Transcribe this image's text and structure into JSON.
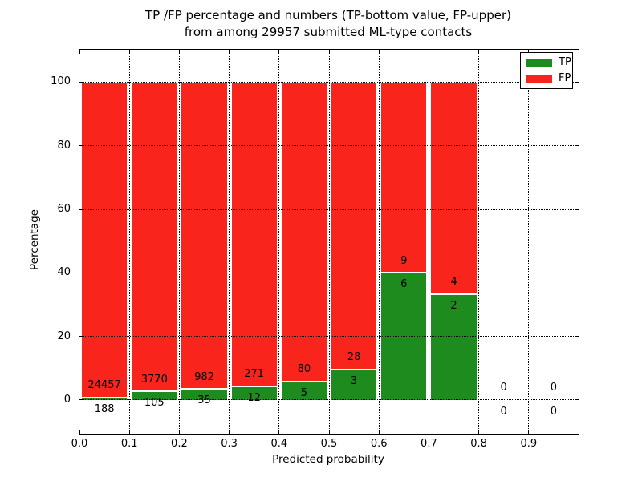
{
  "figure": {
    "title_line1": "TP /FP percentage and numbers (TP-bottom value, FP-upper)",
    "title_line2": "from among 29957 submitted ML-type contacts",
    "xlabel": "Predicted probability",
    "ylabel": "Percentage",
    "total_contacts": "29957"
  },
  "legend": {
    "items": [
      {
        "label": "TP",
        "color": "#1e8b1e"
      },
      {
        "label": "FP",
        "color": "#f9241c"
      }
    ]
  },
  "chart_data": {
    "type": "bar",
    "stacked": true,
    "normalized_to_percent": true,
    "title": "TP /FP percentage and numbers (TP-bottom value, FP-upper) from among 29957 submitted ML-type contacts",
    "xlabel": "Predicted probability",
    "ylabel": "Percentage",
    "grid": "dotted",
    "legend_position": "upper right",
    "xlim": [
      0.0,
      1.0
    ],
    "ylim": [
      -10.6,
      110.2
    ],
    "bin_width": 0.1,
    "x_tick_values": [
      0.0,
      0.1,
      0.2,
      0.3,
      0.4,
      0.5,
      0.6,
      0.7,
      0.8,
      0.9
    ],
    "x_tick_labels": [
      "0.0",
      "0.1",
      "0.2",
      "0.3",
      "0.4",
      "0.5",
      "0.6",
      "0.7",
      "0.8",
      "0.9"
    ],
    "y_ticks": [
      0,
      20,
      40,
      60,
      80,
      100
    ],
    "series": [
      {
        "name": "TP",
        "color": "#1e8b1e",
        "values": [
          188,
          105,
          35,
          12,
          5,
          3,
          6,
          2,
          0,
          0
        ]
      },
      {
        "name": "FP",
        "color": "#f9241c",
        "values": [
          24457,
          3770,
          982,
          271,
          80,
          28,
          9,
          4,
          0,
          0
        ]
      }
    ],
    "bins": [
      {
        "bin_start": 0.0,
        "tp": 188,
        "fp": 24457,
        "tp_percent": 0.76,
        "fp_percent": 99.24
      },
      {
        "bin_start": 0.1,
        "tp": 105,
        "fp": 3770,
        "tp_percent": 2.71,
        "fp_percent": 97.29
      },
      {
        "bin_start": 0.2,
        "tp": 35,
        "fp": 982,
        "tp_percent": 3.44,
        "fp_percent": 96.56
      },
      {
        "bin_start": 0.3,
        "tp": 12,
        "fp": 271,
        "tp_percent": 4.24,
        "fp_percent": 95.76
      },
      {
        "bin_start": 0.4,
        "tp": 5,
        "fp": 80,
        "tp_percent": 5.88,
        "fp_percent": 94.12
      },
      {
        "bin_start": 0.5,
        "tp": 3,
        "fp": 28,
        "tp_percent": 9.68,
        "fp_percent": 90.32
      },
      {
        "bin_start": 0.6,
        "tp": 6,
        "fp": 9,
        "tp_percent": 40.0,
        "fp_percent": 60.0
      },
      {
        "bin_start": 0.7,
        "tp": 2,
        "fp": 4,
        "tp_percent": 33.33,
        "fp_percent": 66.67
      },
      {
        "bin_start": 0.8,
        "tp": 0,
        "fp": 0,
        "tp_percent": null,
        "fp_percent": null
      },
      {
        "bin_start": 0.9,
        "tp": 0,
        "fp": 0,
        "tp_percent": null,
        "fp_percent": null
      }
    ]
  }
}
